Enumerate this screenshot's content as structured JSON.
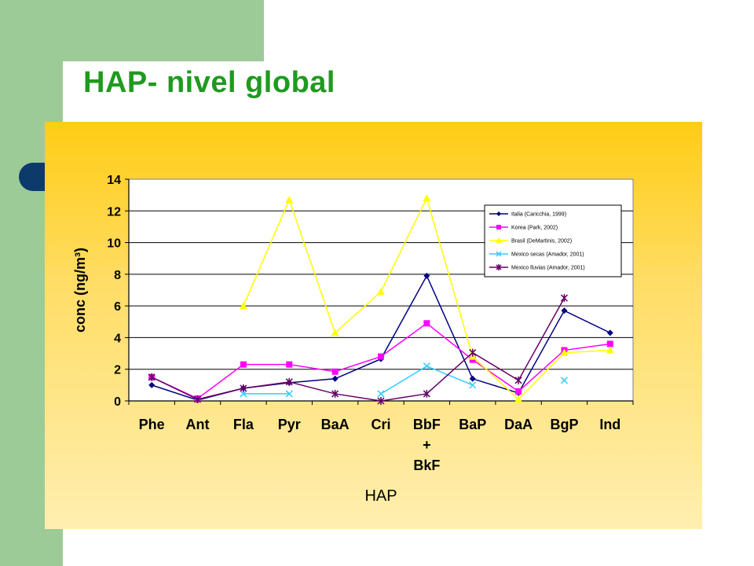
{
  "slide": {
    "title": "HAP- nivel global"
  },
  "chart_data": {
    "type": "line",
    "title": "",
    "xlabel": "HAP",
    "ylabel": "conc (ng/m³)",
    "ylim": [
      0,
      14
    ],
    "yticks": [
      0,
      2,
      4,
      6,
      8,
      10,
      12,
      14
    ],
    "grid": true,
    "legend_position": "top-right",
    "categories": [
      "Phe",
      "Ant",
      "Fla",
      "Pyr",
      "BaA",
      "Cri",
      "BbF + BkF",
      "BaP",
      "DaA",
      "BgP",
      "Ind"
    ],
    "category_lines": [
      [
        "Phe"
      ],
      [
        "Ant"
      ],
      [
        "Fla"
      ],
      [
        "Pyr"
      ],
      [
        "BaA"
      ],
      [
        "Cri"
      ],
      [
        "BbF",
        "+",
        "BkF"
      ],
      [
        "BaP"
      ],
      [
        "DaA"
      ],
      [
        "BgP"
      ],
      [
        "Ind"
      ]
    ],
    "series": [
      {
        "name": "Italia (Caricchia, 1999)",
        "color": "#000080",
        "marker": "diamond",
        "values": [
          1.0,
          0.05,
          0.8,
          1.15,
          1.4,
          2.65,
          7.9,
          1.4,
          0.5,
          5.7,
          4.3
        ]
      },
      {
        "name": "Korea (Park, 2002)",
        "color": "#ff00ff",
        "marker": "square",
        "values": [
          1.5,
          0.15,
          2.3,
          2.3,
          1.85,
          2.8,
          4.9,
          2.6,
          0.6,
          3.2,
          3.6
        ]
      },
      {
        "name": "Brasil (DeMartinis, 2002)",
        "color": "#ffff00",
        "marker": "triangle",
        "values": [
          null,
          null,
          6.0,
          12.7,
          4.3,
          6.9,
          12.8,
          2.8,
          0.1,
          3.05,
          3.2
        ]
      },
      {
        "name": "Mexico secas (Amador, 2001)",
        "color": "#33ccff",
        "marker": "x",
        "values": [
          null,
          null,
          0.45,
          0.45,
          null,
          0.45,
          2.2,
          1.0,
          null,
          1.3,
          null
        ]
      },
      {
        "name": "Mexico lluvias (Amador, 2001)",
        "color": "#660066",
        "marker": "star",
        "values": [
          1.5,
          0.1,
          0.8,
          1.2,
          0.45,
          0.0,
          0.45,
          3.05,
          1.3,
          6.5,
          null
        ]
      }
    ]
  }
}
